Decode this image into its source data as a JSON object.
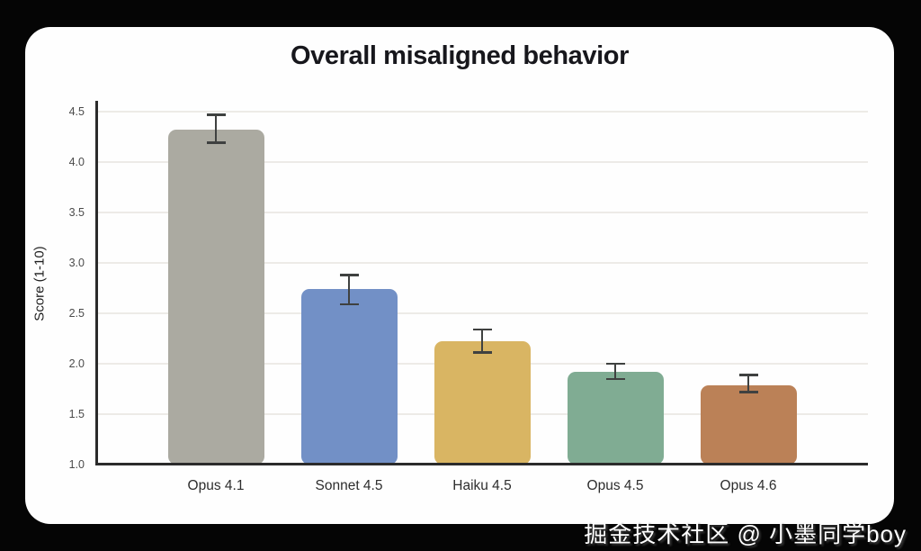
{
  "title": "Overall misaligned behavior",
  "watermark": "掘金技术社区 @ 小墨同学boy",
  "colors": {
    "background": "#050505",
    "card": "#fefefe",
    "axis": "#2b2b2b",
    "grid": "#edebe7",
    "error_bar": "#3f4140",
    "title_text": "#17171c",
    "tick_text": "#4b4b4b",
    "category_text": "#2d2d2d"
  },
  "chart_data": {
    "type": "bar",
    "title": "Overall misaligned behavior",
    "xlabel": "",
    "ylabel": "Score (1-10)",
    "categories": [
      "Opus 4.1",
      "Sonnet 4.5",
      "Haiku 4.5",
      "Opus 4.5",
      "Opus 4.6"
    ],
    "values": [
      4.32,
      2.74,
      2.22,
      1.92,
      1.79
    ],
    "error_low": [
      4.19,
      2.59,
      2.11,
      1.85,
      1.72
    ],
    "error_high": [
      4.47,
      2.88,
      2.34,
      2.0,
      1.89
    ],
    "bar_colors": [
      "#abaaa1",
      "#7290c6",
      "#d9b563",
      "#80ac93",
      "#bb8157"
    ],
    "yticks": [
      1.0,
      1.5,
      2.0,
      2.5,
      3.0,
      3.5,
      4.0,
      4.5
    ],
    "ylim": [
      1.0,
      4.6
    ],
    "grid": true,
    "legend": null
  }
}
